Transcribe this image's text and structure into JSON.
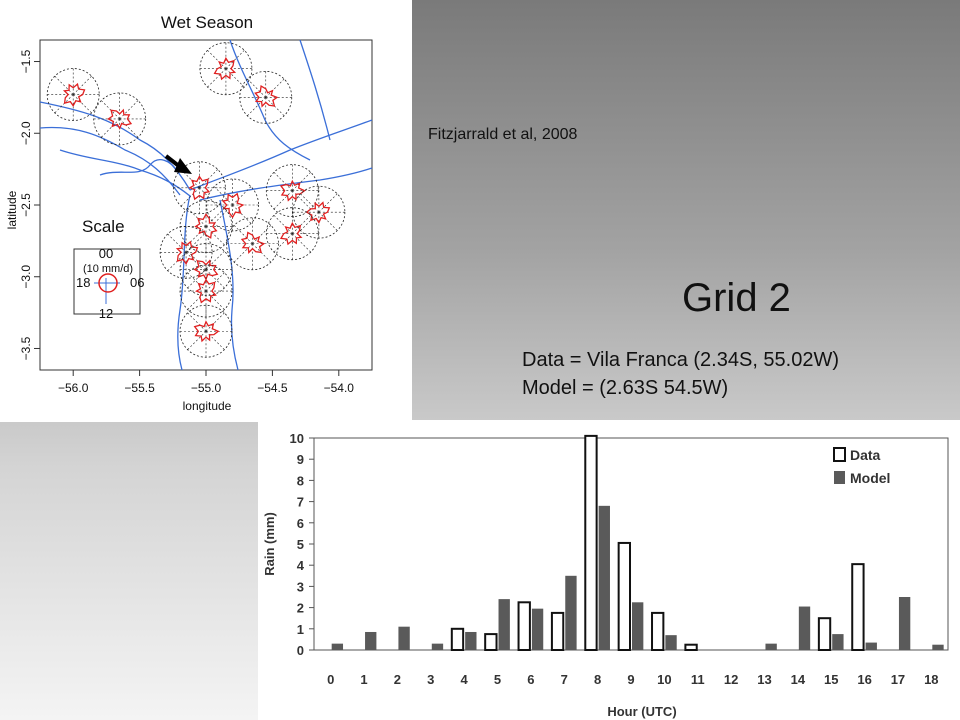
{
  "citation": "Fitzjarrald et al, 2008",
  "slide_title": "Grid 2",
  "info": {
    "data_line": "Data = Vila Franca (2.34S, 55.02W)",
    "model_line": "Model = (2.63S 54.5W)"
  },
  "chart_data": [
    {
      "type": "map",
      "title": "Wet Season",
      "xlabel": "longitude",
      "ylabel": "latitude",
      "xlim": [
        -56.25,
        -53.75
      ],
      "ylim": [
        -3.65,
        -1.35
      ],
      "x_ticks": [
        "−56.0",
        "−55.5",
        "−55.0",
        "−54.5",
        "−54.0"
      ],
      "x_tick_values": [
        -56.0,
        -55.5,
        -55.0,
        -54.5,
        -54.0
      ],
      "y_ticks": [
        "−1.5",
        "−2.0",
        "−2.5",
        "−3.0",
        "−3.5"
      ],
      "y_tick_values": [
        -1.5,
        -2.0,
        -2.5,
        -3.0,
        -3.5
      ],
      "scale": {
        "title": "Scale",
        "top": "00",
        "unit": "(10 mm/d)",
        "left": "18",
        "right": "06",
        "bottom": "12"
      },
      "stations": [
        {
          "lon": -54.85,
          "lat": -1.55
        },
        {
          "lon": -54.55,
          "lat": -1.75
        },
        {
          "lon": -56.0,
          "lat": -1.73
        },
        {
          "lon": -55.65,
          "lat": -1.9
        },
        {
          "lon": -55.05,
          "lat": -2.38
        },
        {
          "lon": -54.35,
          "lat": -2.4
        },
        {
          "lon": -54.8,
          "lat": -2.5
        },
        {
          "lon": -54.15,
          "lat": -2.55
        },
        {
          "lon": -55.0,
          "lat": -2.65
        },
        {
          "lon": -54.35,
          "lat": -2.7
        },
        {
          "lon": -54.65,
          "lat": -2.77
        },
        {
          "lon": -55.15,
          "lat": -2.83
        },
        {
          "lon": -55.0,
          "lat": -2.95
        },
        {
          "lon": -55.0,
          "lat": -3.1
        },
        {
          "lon": -55.0,
          "lat": -3.38
        }
      ]
    },
    {
      "type": "bar",
      "xlabel": "Hour (UTC)",
      "ylabel": "Rain (mm)",
      "ylim": [
        0,
        10
      ],
      "yticks": [
        0,
        1,
        2,
        3,
        4,
        5,
        6,
        7,
        8,
        9,
        10
      ],
      "categories": [
        "0",
        "1",
        "2",
        "3",
        "4",
        "5",
        "6",
        "7",
        "8",
        "9",
        "10",
        "11",
        "12",
        "13",
        "14",
        "15",
        "16",
        "17",
        "18"
      ],
      "legend_position": "top-right",
      "series": [
        {
          "name": "Data",
          "style": "hollow",
          "color": "#111111",
          "values": [
            0,
            0,
            0,
            0,
            1.0,
            0.75,
            2.25,
            1.75,
            10.1,
            5.05,
            1.75,
            0.25,
            0,
            0,
            0,
            1.5,
            4.05,
            0,
            0
          ]
        },
        {
          "name": "Model",
          "style": "filled",
          "color": "#5a5a5a",
          "values": [
            0.3,
            0.85,
            1.1,
            0.3,
            0.85,
            2.4,
            1.95,
            3.5,
            6.8,
            2.25,
            0.7,
            0,
            0,
            0.3,
            2.05,
            0.75,
            0.35,
            2.5,
            0.25
          ]
        }
      ]
    }
  ]
}
